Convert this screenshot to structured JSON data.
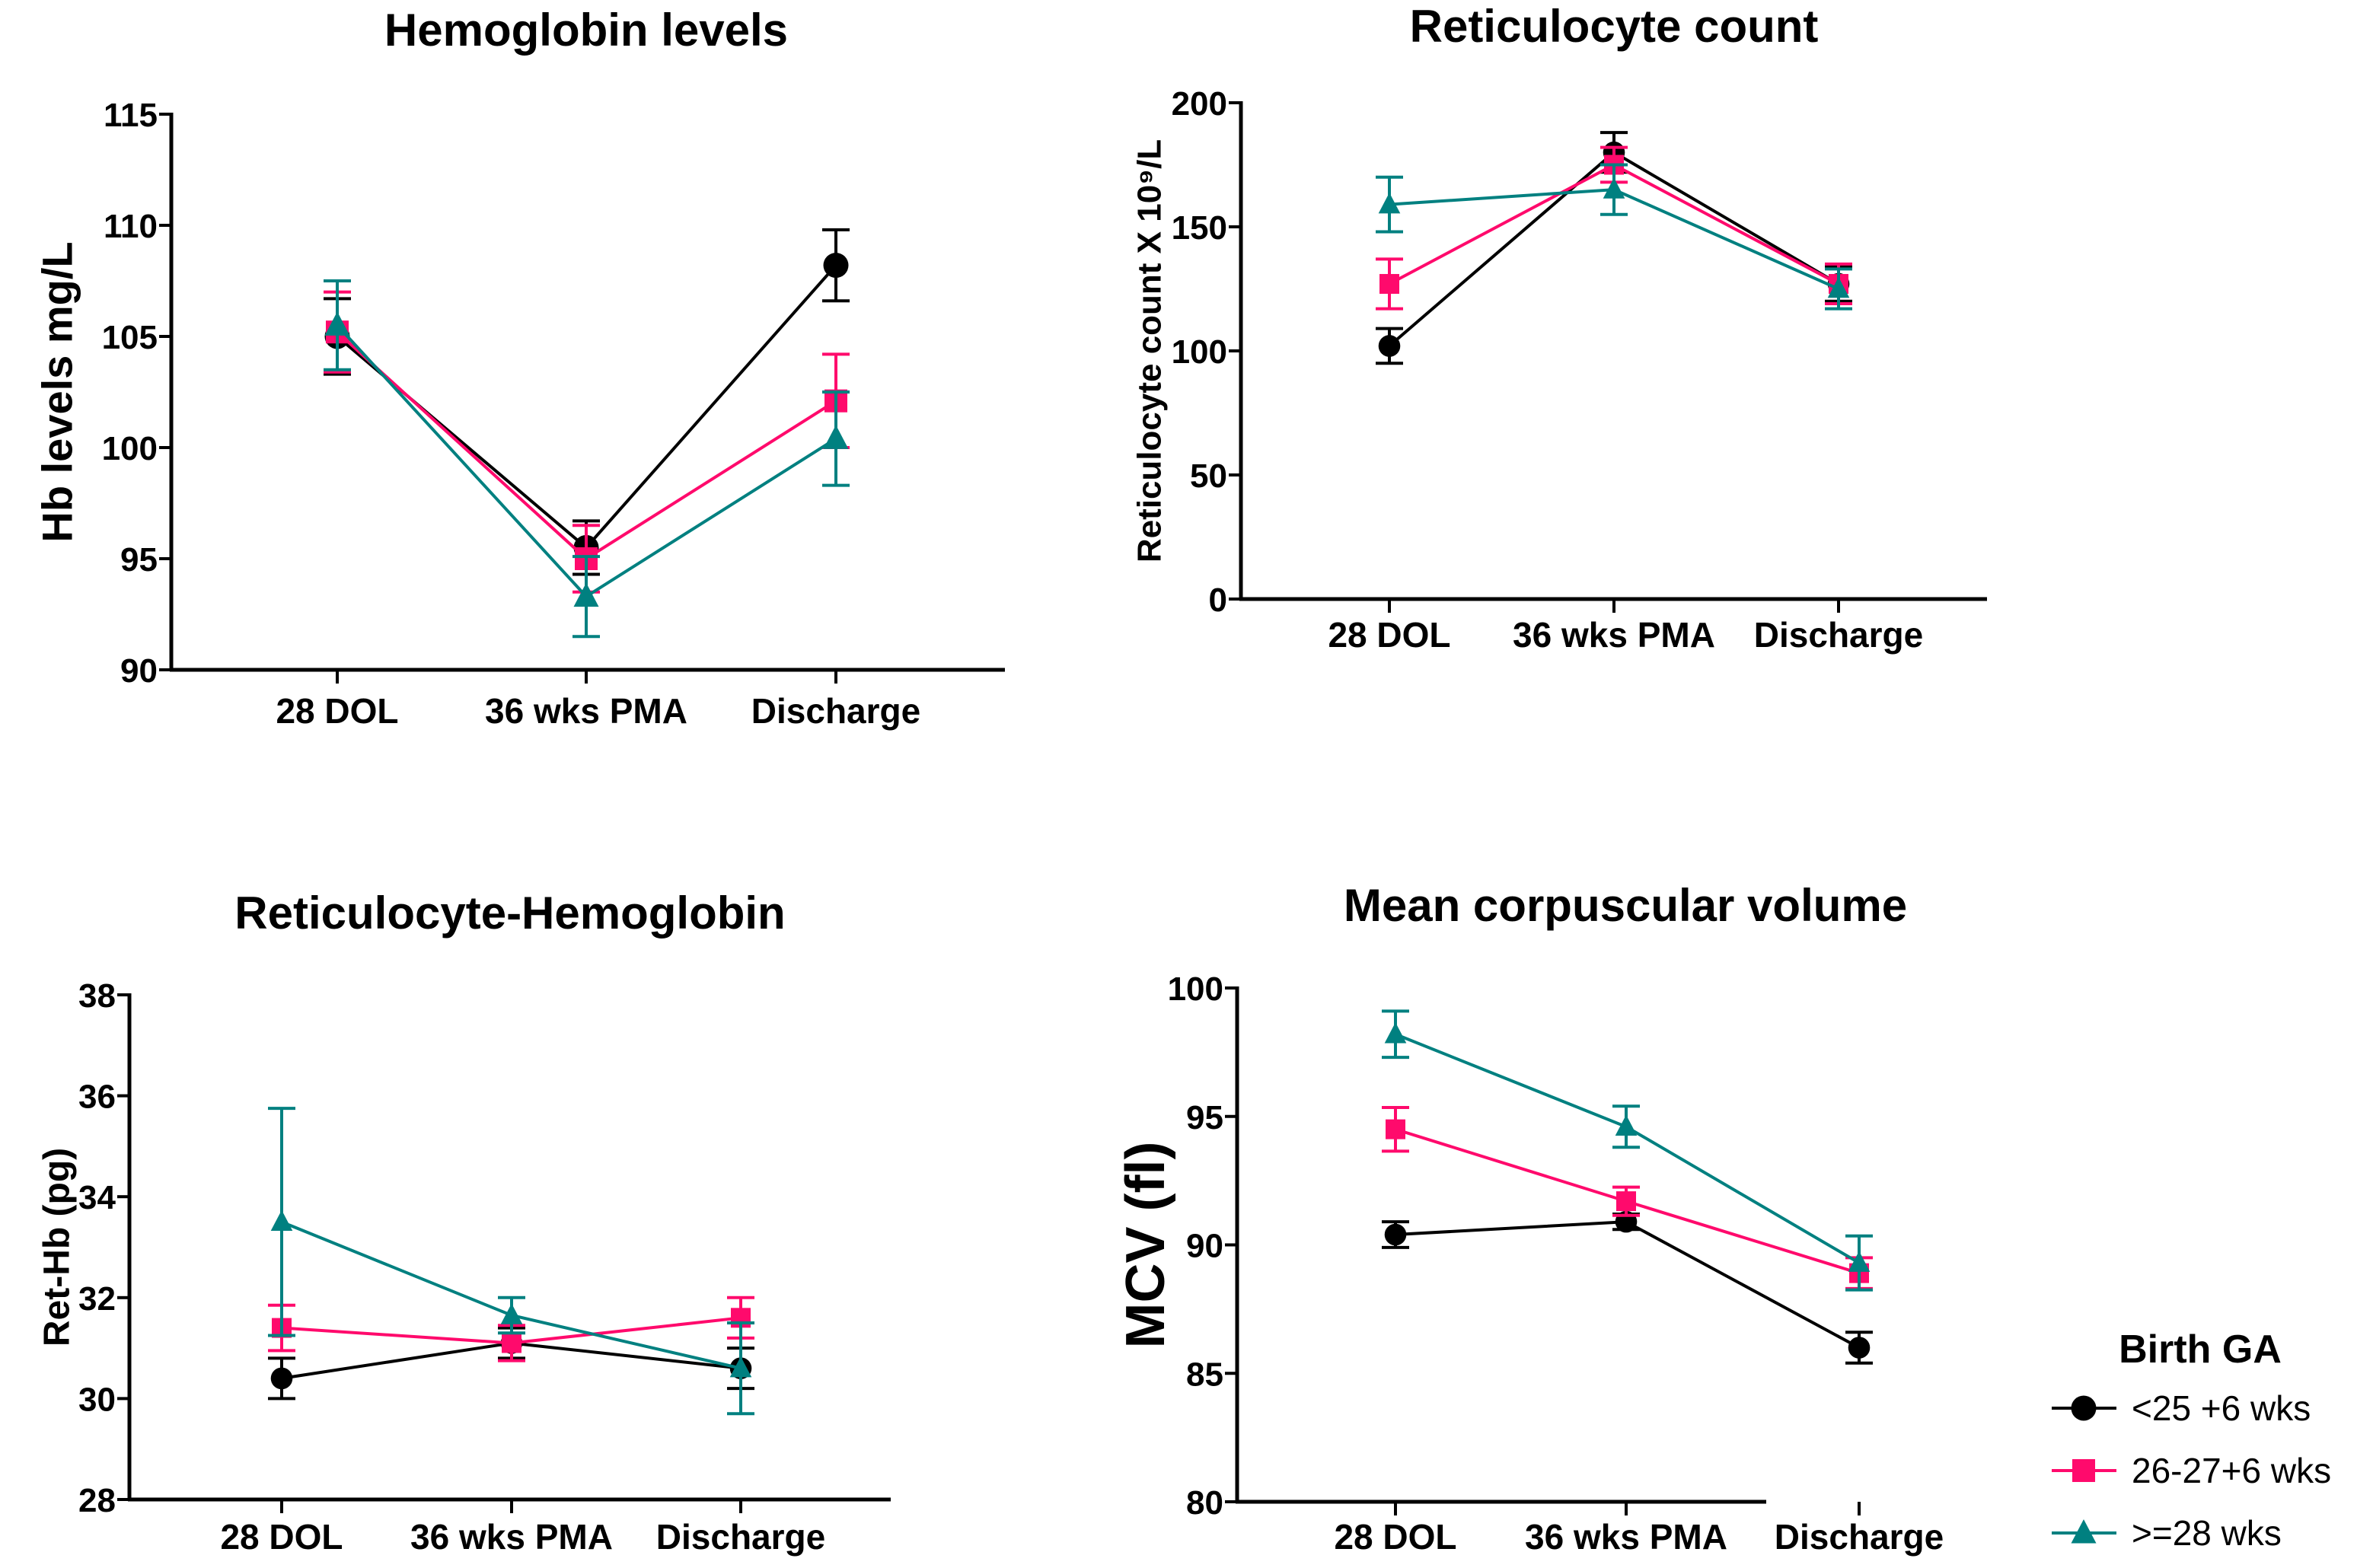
{
  "series_style": [
    {
      "name": "<25 +6 wks",
      "color": "#000000",
      "marker": "circle"
    },
    {
      "name": "26-27+6 wks",
      "color": "#ff0a6c",
      "marker": "square"
    },
    {
      "name": ">=28 wks",
      "color": "#008080",
      "marker": "triangle"
    }
  ],
  "legend": {
    "title": "Birth GA",
    "placement": "bottom-right"
  },
  "chart_data": [
    {
      "type": "line",
      "title": "Hemoglobin levels",
      "ylabel": "Hb levels mg/L",
      "xlabel": "",
      "categories": [
        "28 DOL",
        "36 wks PMA",
        "Discharge"
      ],
      "ylim": [
        90,
        115
      ],
      "yticks": [
        90,
        95,
        100,
        105,
        110,
        115
      ],
      "ytick_labels": [
        "90",
        "95",
        "100",
        "105",
        "110",
        "115"
      ],
      "series": [
        {
          "name": "<25 +6 wks",
          "values": [
            105.0,
            95.5,
            108.2
          ],
          "errors": [
            1.7,
            1.2,
            1.6
          ]
        },
        {
          "name": "26-27+6 wks",
          "values": [
            105.2,
            95.0,
            102.1
          ],
          "errors": [
            1.8,
            1.5,
            2.1
          ]
        },
        {
          "name": ">=28 wks",
          "values": [
            105.5,
            93.3,
            100.4
          ],
          "errors": [
            2.0,
            1.8,
            2.1
          ]
        }
      ]
    },
    {
      "type": "line",
      "title": "Reticulocyte count",
      "ylabel": "Reticulocyte count X 10⁹/L",
      "xlabel": "",
      "categories": [
        "28 DOL",
        "36 wks PMA",
        "Discharge"
      ],
      "ylim": [
        0,
        200
      ],
      "yticks": [
        0,
        50,
        100,
        150,
        200
      ],
      "ytick_labels": [
        "0",
        "50",
        "100",
        "150",
        "200"
      ],
      "series": [
        {
          "name": "<25 +6 wks",
          "values": [
            102,
            180,
            127
          ],
          "errors": [
            7,
            8,
            7
          ]
        },
        {
          "name": "26-27+6 wks",
          "values": [
            127,
            175,
            127
          ],
          "errors": [
            10,
            7,
            8
          ]
        },
        {
          "name": ">=28 wks",
          "values": [
            159,
            165,
            125
          ],
          "errors": [
            11,
            10,
            8
          ]
        }
      ]
    },
    {
      "type": "line",
      "title": "Reticulocyte-Hemoglobin",
      "ylabel": "Ret-Hb (pg)",
      "xlabel": "",
      "categories": [
        "28 DOL",
        "36 wks PMA",
        "Discharge"
      ],
      "ylim": [
        28,
        38
      ],
      "yticks": [
        28,
        30,
        32,
        34,
        36,
        38
      ],
      "ytick_labels": [
        "28",
        "30",
        "32",
        "34",
        "36",
        "38"
      ],
      "series": [
        {
          "name": "<25 +6 wks",
          "values": [
            30.4,
            31.1,
            30.6
          ],
          "errors": [
            0.4,
            0.3,
            0.4
          ]
        },
        {
          "name": "26-27+6 wks",
          "values": [
            31.4,
            31.1,
            31.6
          ],
          "errors": [
            0.45,
            0.35,
            0.4
          ]
        },
        {
          "name": ">=28 wks",
          "values": [
            33.5,
            31.65,
            30.6
          ],
          "errors": [
            2.25,
            0.35,
            0.9
          ]
        }
      ]
    },
    {
      "type": "line",
      "title": "Mean corpuscular volume",
      "ylabel": "MCV (fl)",
      "xlabel": "",
      "categories": [
        "28 DOL",
        "36 wks PMA",
        "Discharge"
      ],
      "ylim": [
        80,
        100
      ],
      "yticks": [
        80,
        85,
        90,
        95,
        100
      ],
      "ytick_labels": [
        "80",
        "85",
        "90",
        "95",
        "100"
      ],
      "series": [
        {
          "name": "<25 +6 wks",
          "values": [
            90.4,
            90.9,
            86.0
          ],
          "errors": [
            0.5,
            0.3,
            0.6
          ]
        },
        {
          "name": "26-27+6 wks",
          "values": [
            94.5,
            91.7,
            88.9
          ],
          "errors": [
            0.85,
            0.55,
            0.6
          ]
        },
        {
          "name": ">=28 wks",
          "values": [
            98.2,
            94.6,
            89.3
          ],
          "errors": [
            0.9,
            0.8,
            1.05
          ]
        }
      ]
    }
  ]
}
